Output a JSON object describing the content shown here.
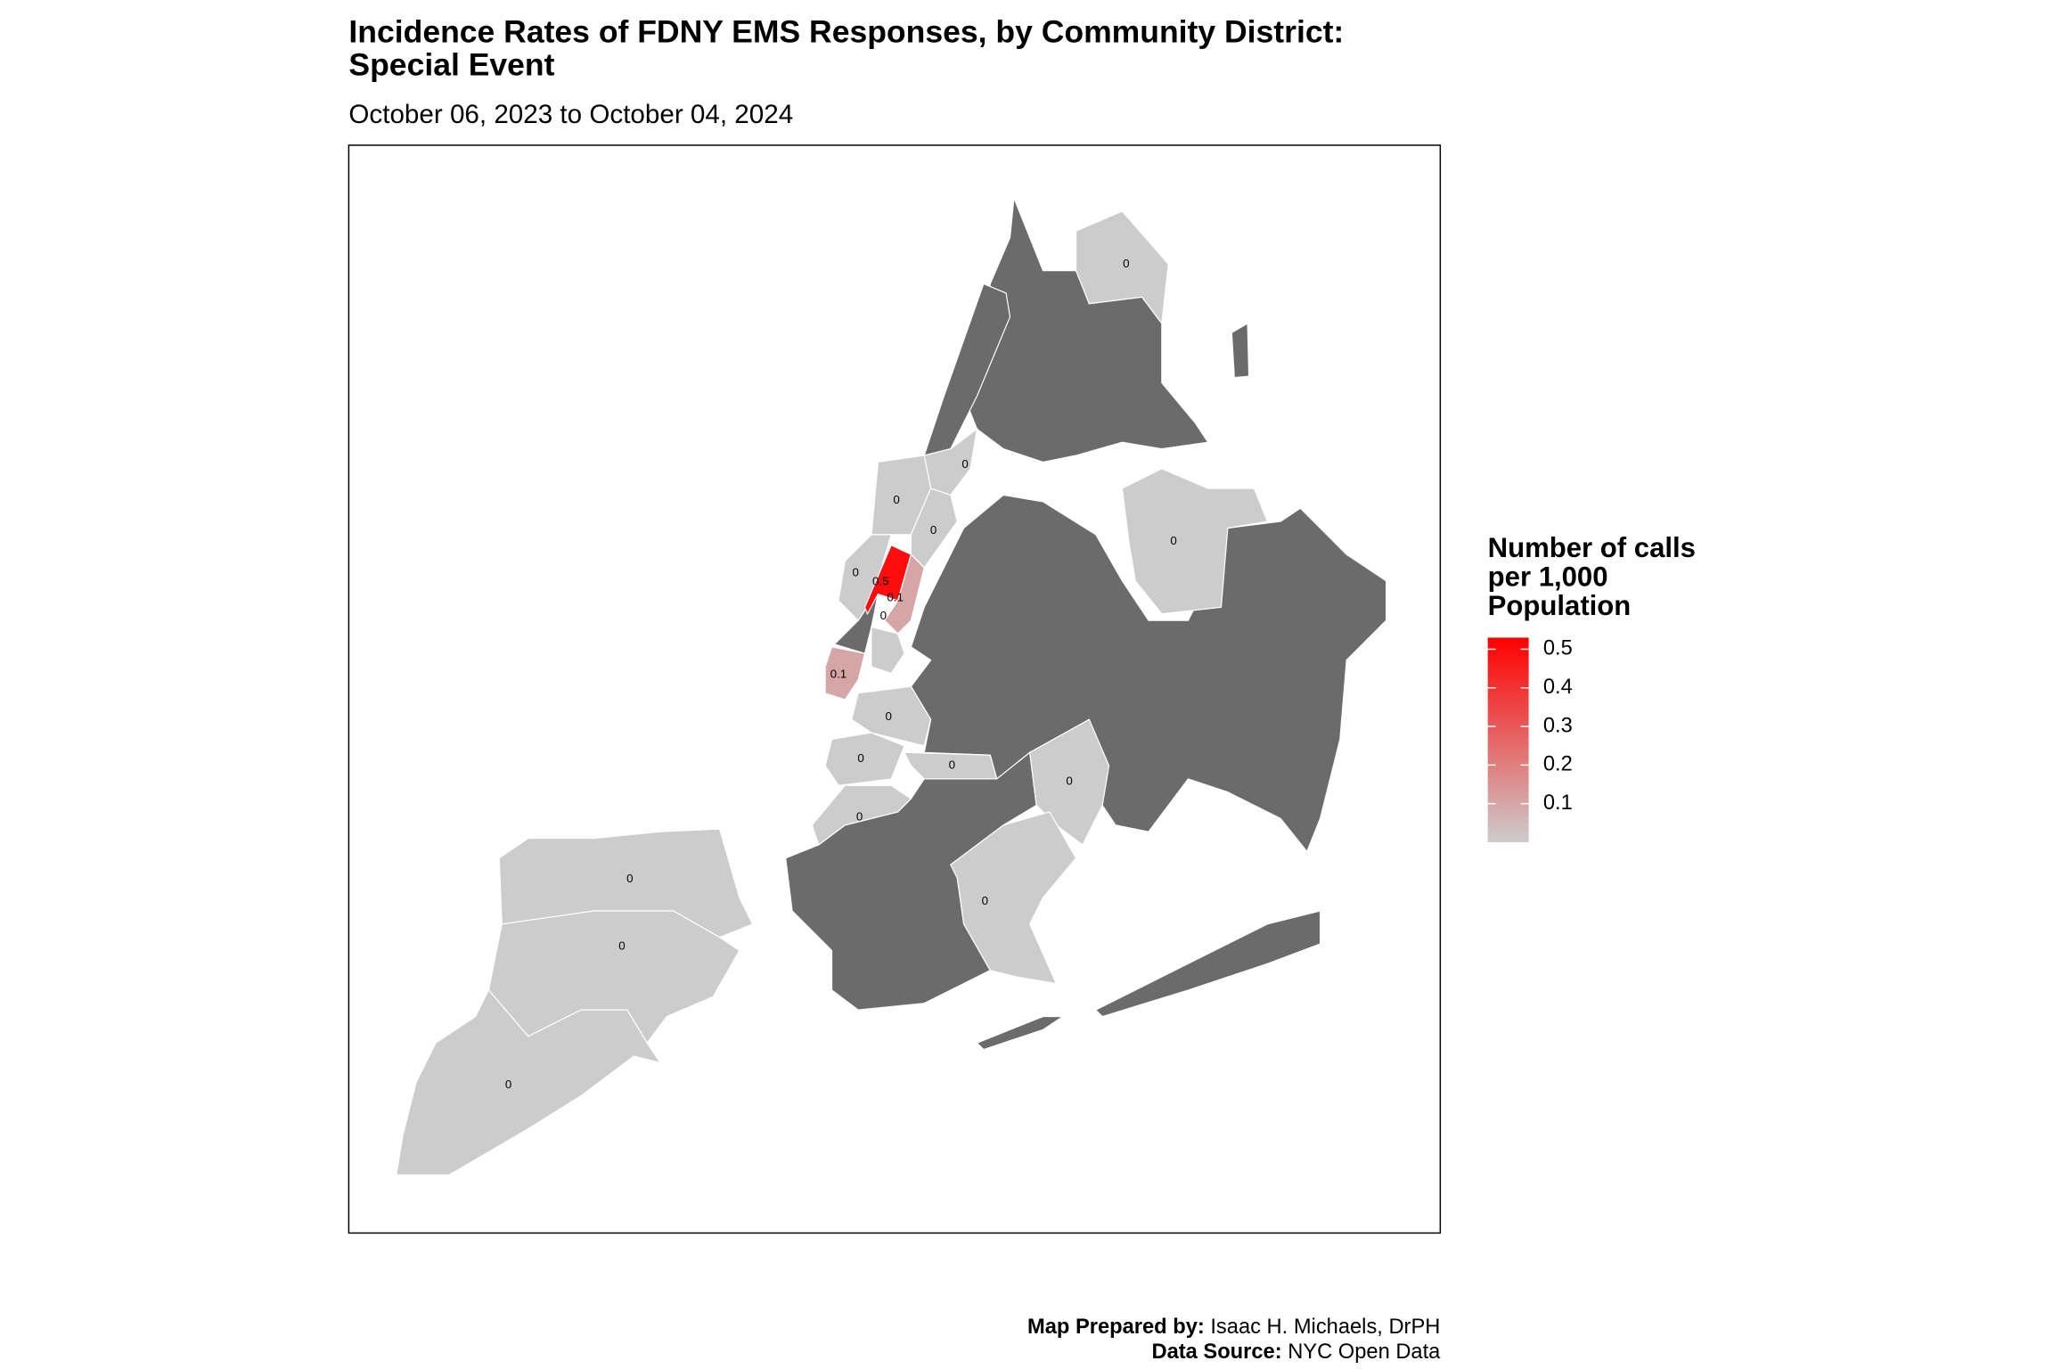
{
  "map": {
    "title": [
      "Incidence Rates of FDNY EMS Responses, by Community District:",
      "Special Event"
    ],
    "subtitle": "October 06, 2023 to October 04, 2024",
    "districts": [
      {
        "value": 0
      },
      {
        "value": 0
      },
      {
        "value": 0
      },
      {
        "value": 0
      },
      {
        "value": 0
      },
      {
        "value": 0.5
      },
      {
        "value": 0.1
      },
      {
        "value": 0
      },
      {
        "value": 0.1
      },
      {
        "value": 0
      },
      {
        "value": 0
      },
      {
        "value": 0
      },
      {
        "value": 0
      },
      {
        "value": 0
      },
      {
        "value": 0
      },
      {
        "value": 0
      },
      {
        "value": 0
      },
      {
        "value": 0
      },
      {
        "value": 0
      }
    ],
    "legend": {
      "title": [
        "Number of calls",
        "per 1,000",
        "Population"
      ],
      "ticks": [
        0.1,
        0.2,
        0.3,
        0.4,
        0.5
      ],
      "lim": [
        0,
        0.53
      ],
      "low_color": "#cccccc",
      "high_color": "#ff0000"
    },
    "caption": {
      "prepared_label": "Map Prepared by:",
      "prepared_by": "Isaac H. Michaels, DrPH",
      "source_label": "Data Source:",
      "source": "NYC Open Data"
    }
  }
}
